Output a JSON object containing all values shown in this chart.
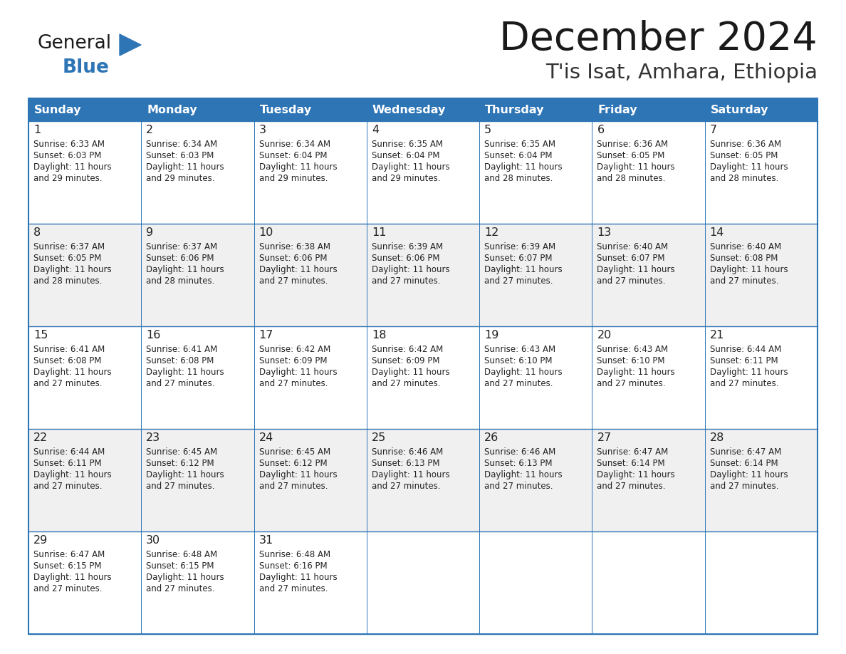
{
  "title": "December 2024",
  "subtitle": "T'is Isat, Amhara, Ethiopia",
  "header_bg_color": "#2E75B6",
  "header_text_color": "#FFFFFF",
  "cell_border_color": "#2E75B6",
  "day_number_color": "#222222",
  "text_color": "#222222",
  "bg_color": "#FFFFFF",
  "alt_row_bg": "#F0F0F0",
  "days_of_week": [
    "Sunday",
    "Monday",
    "Tuesday",
    "Wednesday",
    "Thursday",
    "Friday",
    "Saturday"
  ],
  "weeks": [
    [
      {
        "day": 1,
        "sunrise": "6:33 AM",
        "sunset": "6:03 PM",
        "daylight_min": "29"
      },
      {
        "day": 2,
        "sunrise": "6:34 AM",
        "sunset": "6:03 PM",
        "daylight_min": "29"
      },
      {
        "day": 3,
        "sunrise": "6:34 AM",
        "sunset": "6:04 PM",
        "daylight_min": "29"
      },
      {
        "day": 4,
        "sunrise": "6:35 AM",
        "sunset": "6:04 PM",
        "daylight_min": "29"
      },
      {
        "day": 5,
        "sunrise": "6:35 AM",
        "sunset": "6:04 PM",
        "daylight_min": "28"
      },
      {
        "day": 6,
        "sunrise": "6:36 AM",
        "sunset": "6:05 PM",
        "daylight_min": "28"
      },
      {
        "day": 7,
        "sunrise": "6:36 AM",
        "sunset": "6:05 PM",
        "daylight_min": "28"
      }
    ],
    [
      {
        "day": 8,
        "sunrise": "6:37 AM",
        "sunset": "6:05 PM",
        "daylight_min": "28"
      },
      {
        "day": 9,
        "sunrise": "6:37 AM",
        "sunset": "6:06 PM",
        "daylight_min": "28"
      },
      {
        "day": 10,
        "sunrise": "6:38 AM",
        "sunset": "6:06 PM",
        "daylight_min": "27"
      },
      {
        "day": 11,
        "sunrise": "6:39 AM",
        "sunset": "6:06 PM",
        "daylight_min": "27"
      },
      {
        "day": 12,
        "sunrise": "6:39 AM",
        "sunset": "6:07 PM",
        "daylight_min": "27"
      },
      {
        "day": 13,
        "sunrise": "6:40 AM",
        "sunset": "6:07 PM",
        "daylight_min": "27"
      },
      {
        "day": 14,
        "sunrise": "6:40 AM",
        "sunset": "6:08 PM",
        "daylight_min": "27"
      }
    ],
    [
      {
        "day": 15,
        "sunrise": "6:41 AM",
        "sunset": "6:08 PM",
        "daylight_min": "27"
      },
      {
        "day": 16,
        "sunrise": "6:41 AM",
        "sunset": "6:08 PM",
        "daylight_min": "27"
      },
      {
        "day": 17,
        "sunrise": "6:42 AM",
        "sunset": "6:09 PM",
        "daylight_min": "27"
      },
      {
        "day": 18,
        "sunrise": "6:42 AM",
        "sunset": "6:09 PM",
        "daylight_min": "27"
      },
      {
        "day": 19,
        "sunrise": "6:43 AM",
        "sunset": "6:10 PM",
        "daylight_min": "27"
      },
      {
        "day": 20,
        "sunrise": "6:43 AM",
        "sunset": "6:10 PM",
        "daylight_min": "27"
      },
      {
        "day": 21,
        "sunrise": "6:44 AM",
        "sunset": "6:11 PM",
        "daylight_min": "27"
      }
    ],
    [
      {
        "day": 22,
        "sunrise": "6:44 AM",
        "sunset": "6:11 PM",
        "daylight_min": "27"
      },
      {
        "day": 23,
        "sunrise": "6:45 AM",
        "sunset": "6:12 PM",
        "daylight_min": "27"
      },
      {
        "day": 24,
        "sunrise": "6:45 AM",
        "sunset": "6:12 PM",
        "daylight_min": "27"
      },
      {
        "day": 25,
        "sunrise": "6:46 AM",
        "sunset": "6:13 PM",
        "daylight_min": "27"
      },
      {
        "day": 26,
        "sunrise": "6:46 AM",
        "sunset": "6:13 PM",
        "daylight_min": "27"
      },
      {
        "day": 27,
        "sunrise": "6:47 AM",
        "sunset": "6:14 PM",
        "daylight_min": "27"
      },
      {
        "day": 28,
        "sunrise": "6:47 AM",
        "sunset": "6:14 PM",
        "daylight_min": "27"
      }
    ],
    [
      {
        "day": 29,
        "sunrise": "6:47 AM",
        "sunset": "6:15 PM",
        "daylight_min": "27"
      },
      {
        "day": 30,
        "sunrise": "6:48 AM",
        "sunset": "6:15 PM",
        "daylight_min": "27"
      },
      {
        "day": 31,
        "sunrise": "6:48 AM",
        "sunset": "6:16 PM",
        "daylight_min": "27"
      },
      null,
      null,
      null,
      null
    ]
  ]
}
